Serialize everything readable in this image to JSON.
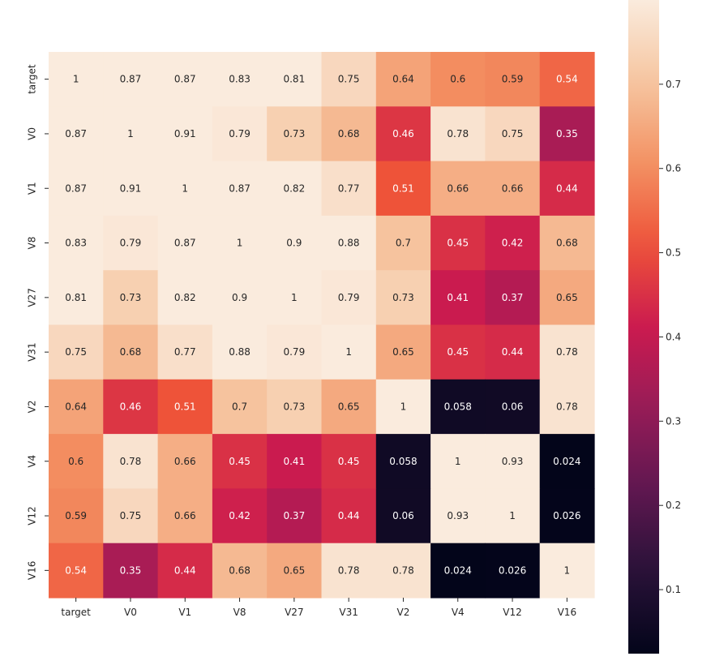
{
  "chart_data": {
    "type": "heatmap",
    "title": "",
    "xlabel": "",
    "ylabel": "",
    "x_labels": [
      "target",
      "V0",
      "V1",
      "V8",
      "V27",
      "V31",
      "V2",
      "V4",
      "V12",
      "V16"
    ],
    "y_labels": [
      "target",
      "V0",
      "V1",
      "V8",
      "V27",
      "V31",
      "V2",
      "V4",
      "V12",
      "V16"
    ],
    "values": [
      [
        1,
        0.87,
        0.87,
        0.83,
        0.81,
        0.75,
        0.64,
        0.6,
        0.59,
        0.54
      ],
      [
        0.87,
        1,
        0.91,
        0.79,
        0.73,
        0.68,
        0.46,
        0.78,
        0.75,
        0.35
      ],
      [
        0.87,
        0.91,
        1,
        0.87,
        0.82,
        0.77,
        0.51,
        0.66,
        0.66,
        0.44
      ],
      [
        0.83,
        0.79,
        0.87,
        1,
        0.9,
        0.88,
        0.7,
        0.45,
        0.42,
        0.68
      ],
      [
        0.81,
        0.73,
        0.82,
        0.9,
        1,
        0.79,
        0.73,
        0.41,
        0.37,
        0.65
      ],
      [
        0.75,
        0.68,
        0.77,
        0.88,
        0.79,
        1,
        0.65,
        0.45,
        0.44,
        0.78
      ],
      [
        0.64,
        0.46,
        0.51,
        0.7,
        0.73,
        0.65,
        1,
        0.058,
        0.06,
        0.78
      ],
      [
        0.6,
        0.78,
        0.66,
        0.45,
        0.41,
        0.45,
        0.058,
        1,
        0.93,
        0.024
      ],
      [
        0.59,
        0.75,
        0.66,
        0.42,
        0.37,
        0.44,
        0.06,
        0.93,
        1,
        0.026
      ],
      [
        0.54,
        0.35,
        0.44,
        0.68,
        0.65,
        0.78,
        0.78,
        0.024,
        0.026,
        1
      ]
    ],
    "annotations": [
      [
        "1",
        "0.87",
        "0.87",
        "0.83",
        "0.81",
        "0.75",
        "0.64",
        "0.6",
        "0.59",
        "0.54"
      ],
      [
        "0.87",
        "1",
        "0.91",
        "0.79",
        "0.73",
        "0.68",
        "0.46",
        "0.78",
        "0.75",
        "0.35"
      ],
      [
        "0.87",
        "0.91",
        "1",
        "0.87",
        "0.82",
        "0.77",
        "0.51",
        "0.66",
        "0.66",
        "0.44"
      ],
      [
        "0.83",
        "0.79",
        "0.87",
        "1",
        "0.9",
        "0.88",
        "0.7",
        "0.45",
        "0.42",
        "0.68"
      ],
      [
        "0.81",
        "0.73",
        "0.82",
        "0.9",
        "1",
        "0.79",
        "0.73",
        "0.41",
        "0.37",
        "0.65"
      ],
      [
        "0.75",
        "0.68",
        "0.77",
        "0.88",
        "0.79",
        "1",
        "0.65",
        "0.45",
        "0.44",
        "0.78"
      ],
      [
        "0.64",
        "0.46",
        "0.51",
        "0.7",
        "0.73",
        "0.65",
        "1",
        "0.058",
        "0.06",
        "0.78"
      ],
      [
        "0.6",
        "0.78",
        "0.66",
        "0.45",
        "0.41",
        "0.45",
        "0.058",
        "1",
        "0.93",
        "0.024"
      ],
      [
        "0.59",
        "0.75",
        "0.66",
        "0.42",
        "0.37",
        "0.44",
        "0.06",
        "0.93",
        "1",
        "0.026"
      ],
      [
        "0.54",
        "0.35",
        "0.44",
        "0.68",
        "0.65",
        "0.78",
        "0.78",
        "0.024",
        "0.026",
        "1"
      ]
    ],
    "colormap": "rocket",
    "vmin": 0.024,
    "vmax": 0.8,
    "colorbar_ticks": [
      0.1,
      0.2,
      0.3,
      0.4,
      0.5,
      0.6,
      0.7
    ],
    "colorbar_tick_labels": [
      "0.1",
      "0.2",
      "0.3",
      "0.4",
      "0.5",
      "0.6",
      "0.7"
    ],
    "colorbar_placement": "right",
    "grid": false
  }
}
